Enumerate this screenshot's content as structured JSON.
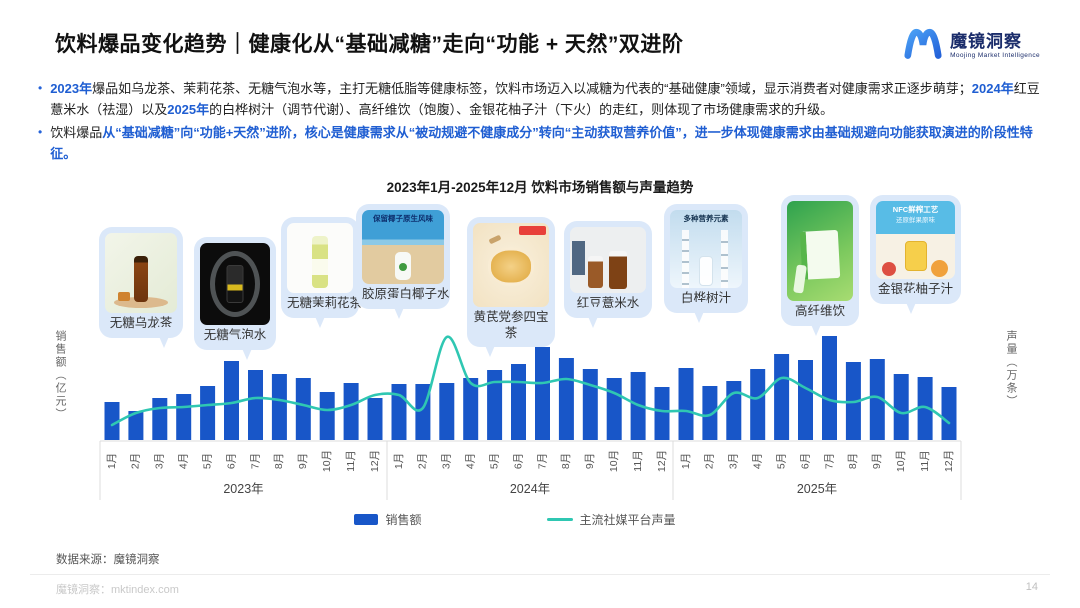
{
  "header": {
    "title": "饮料爆品变化趋势｜健康化从“基础减糖”走向“功能 + 天然”双进阶",
    "logo": {
      "name": "魔镜洞察",
      "subtitle": "Moojing Market Intelligence"
    }
  },
  "bullets": [
    {
      "segments": [
        {
          "text": "2023年",
          "style": "blue"
        },
        {
          "text": "爆品如乌龙茶、茉莉花茶、无糖气泡水等，主打无糖低脂等健康标签，饮料市场迈入以减糖为代表的“基础健康”领域，显示消费者对健康需求正逐步萌芽；",
          "style": "normal"
        },
        {
          "text": "2024年",
          "style": "blue"
        },
        {
          "text": "红豆薏米水（祛湿）以及",
          "style": "normal"
        },
        {
          "text": "2025年",
          "style": "blue"
        },
        {
          "text": "的白桦树汁（调节代谢）、高纤维饮（饱腹）、金银花柚子汁（下火）的走红，则体现了市场健康需求的升级。",
          "style": "normal"
        }
      ]
    },
    {
      "segments": [
        {
          "text": "饮料爆品",
          "style": "normal"
        },
        {
          "text": "从“基础减糖”向“功能+天然”进阶，核心是健康需求从“被动规避不健康成分”转向“主动获取营养价值”，进一步体现健康需求由基础规避向功能获取演进的阶段性特征。",
          "style": "blue"
        }
      ]
    }
  ],
  "products": [
    {
      "name": "无糖乌龙茶"
    },
    {
      "name": "无糖气泡水"
    },
    {
      "name": "无糖茉莉花茶"
    },
    {
      "name": "胶原蛋白椰子水",
      "overlay": "保留椰子原生风味"
    },
    {
      "name": "黄芪党参四宝茶"
    },
    {
      "name": "红豆薏米水"
    },
    {
      "name": "白桦树汁",
      "overlay": "多种营养元素"
    },
    {
      "name": "高纤维饮"
    },
    {
      "name": "金银花柚子汁",
      "overlay": "NFC鲜榨工艺",
      "overlay2": "还原鲜果原味"
    }
  ],
  "chart_data": {
    "type": "bar",
    "title": "2023年1月-2025年12月 饮料市场销售额与声量趋势",
    "y_left_label": "销售额（亿元）",
    "y_right_label": "声量（万条）",
    "value_unit": "relative (no numeric axis ticks shown)",
    "years": [
      "2023年",
      "2024年",
      "2025年"
    ],
    "months": [
      "1月",
      "2月",
      "3月",
      "4月",
      "5月",
      "6月",
      "7月",
      "8月",
      "9月",
      "10月",
      "11月",
      "12月"
    ],
    "series": [
      {
        "name": "销售额",
        "type": "bar",
        "color": "#1856c8",
        "values": [
          38,
          29,
          42,
          46,
          54,
          79,
          70,
          66,
          62,
          48,
          57,
          42,
          56,
          56,
          57,
          62,
          70,
          76,
          93,
          82,
          71,
          62,
          68,
          53,
          72,
          54,
          59,
          71,
          86,
          80,
          104,
          78,
          81,
          66,
          63,
          53
        ]
      },
      {
        "name": "主流社媒平台声量",
        "type": "line",
        "color": "#2fc7b2",
        "values": [
          15,
          27,
          32,
          33,
          35,
          37,
          42,
          40,
          35,
          30,
          35,
          45,
          45,
          32,
          103,
          57,
          58,
          58,
          57,
          61,
          55,
          47,
          35,
          29,
          29,
          25,
          47,
          42,
          62,
          52,
          40,
          38,
          43,
          27,
          33,
          17
        ]
      }
    ],
    "legend": [
      "销售额",
      "主流社媒平台声量"
    ],
    "legend_position": "bottom",
    "grid": false
  },
  "colors": {
    "bar": "#1856c8",
    "line": "#2fc7b2",
    "bubble": "#dbe8f9",
    "accent_blue": "#1f5ed2"
  },
  "footer": {
    "source": "数据来源：魔镜洞察",
    "site": "魔镜洞察：mktindex.com",
    "page": "14"
  }
}
